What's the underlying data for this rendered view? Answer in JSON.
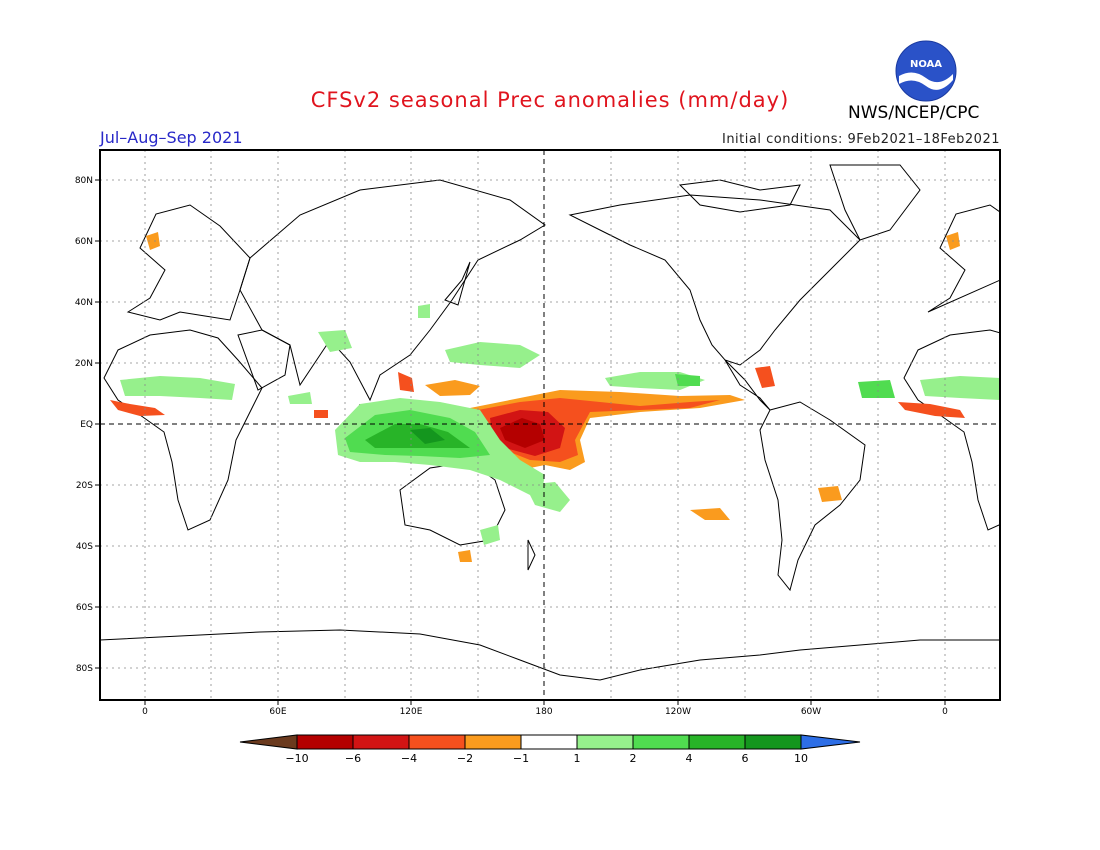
{
  "title": "CFSv2 seasonal Prec anomalies (mm/day)",
  "period": "Jul–Aug–Sep 2021",
  "initial_conditions": "Initial conditions: 9Feb2021–18Feb2021",
  "agency": "NWS/NCEP/CPC",
  "logo": {
    "icon": "noaa-logo-icon",
    "text": "NOAA"
  },
  "map": {
    "lat_labels": [
      "80N",
      "60N",
      "40N",
      "20N",
      "EQ",
      "20S",
      "40S",
      "60S",
      "80S"
    ],
    "lon_labels": [
      "0",
      "60E",
      "120E",
      "180",
      "120W",
      "60W",
      "0"
    ]
  },
  "colorbar": {
    "labels": [
      "−10",
      "−6",
      "−4",
      "−2",
      "−1",
      "1",
      "2",
      "4",
      "6",
      "10"
    ],
    "colors": [
      "#6b3a1e",
      "#b40000",
      "#d21414",
      "#f5501e",
      "#fa9b1e",
      "#ffffff",
      "#96f08c",
      "#50dc50",
      "#28b428",
      "#14961e",
      "#2d6ee6"
    ]
  },
  "colors": {
    "dry_strong": "#b40000",
    "dry_mid": "#f5501e",
    "dry_weak": "#fa9b1e",
    "wet_weak": "#96f08c",
    "wet_mid": "#50dc50",
    "wet_strong": "#14961e"
  }
}
